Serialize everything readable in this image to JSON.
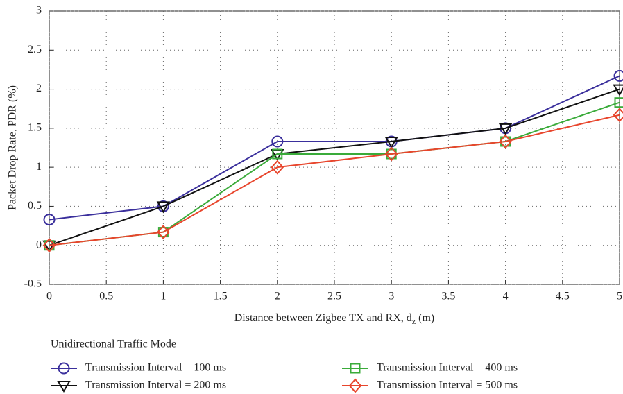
{
  "chart_data": {
    "type": "line",
    "xlabel": [
      "Distance between Zigbee TX and RX, d",
      "z",
      " (m)"
    ],
    "ylabel": "Packet Drop Rate, PDR (%)",
    "legend_title": "Unidirectional Traffic Mode",
    "x": [
      0,
      1,
      2,
      3,
      4,
      5
    ],
    "series": [
      {
        "name": "Transmission Interval = 100 ms",
        "color": "#3a2f9c",
        "marker": "circle",
        "values": [
          0.33,
          0.5,
          1.33,
          1.33,
          1.5,
          2.17
        ]
      },
      {
        "name": "Transmission Interval = 200 ms",
        "color": "#111111",
        "marker": "triangle-down",
        "values": [
          0,
          0.5,
          1.17,
          1.33,
          1.5,
          2.0
        ]
      },
      {
        "name": "Transmission Interval = 400 ms",
        "color": "#3aab3a",
        "marker": "square",
        "values": [
          0,
          0.17,
          1.17,
          1.17,
          1.33,
          1.83
        ]
      },
      {
        "name": "Transmission Interval = 500 ms",
        "color": "#e8452c",
        "marker": "diamond",
        "values": [
          0,
          0.17,
          1.0,
          1.17,
          1.33,
          1.67
        ]
      }
    ],
    "xlim": [
      0,
      5
    ],
    "xticks": [
      0,
      0.5,
      1,
      1.5,
      2,
      2.5,
      3,
      3.5,
      4,
      4.5,
      5
    ],
    "ylim": [
      -0.5,
      3
    ],
    "yticks": [
      -0.5,
      0,
      0.5,
      1,
      1.5,
      2,
      2.5,
      3
    ],
    "grid": true
  }
}
